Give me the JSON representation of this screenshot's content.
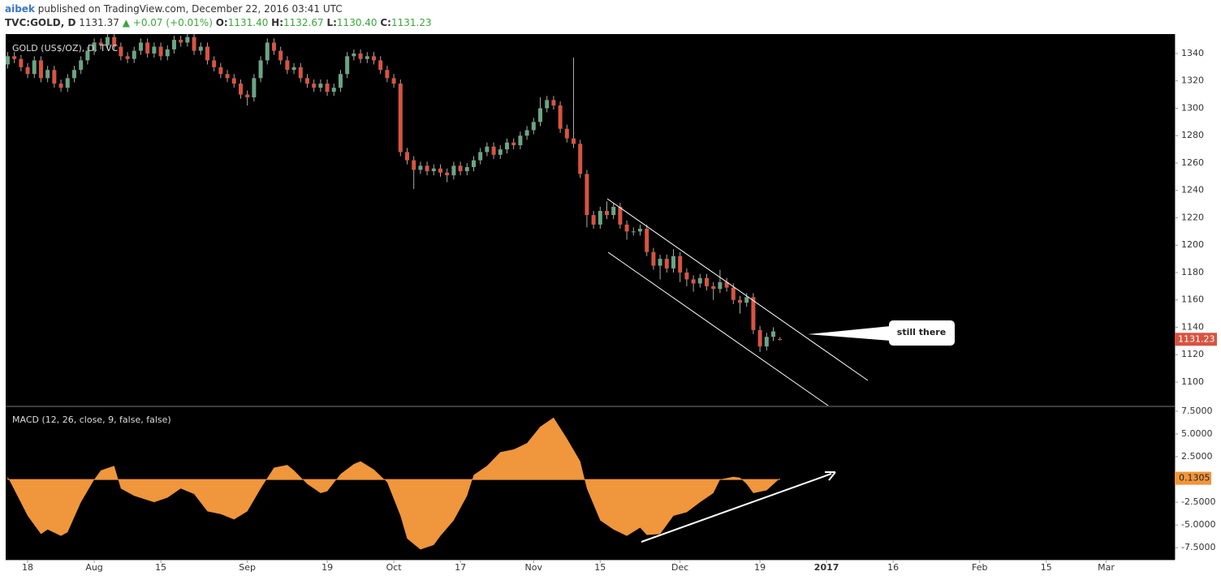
{
  "header": {
    "author": "aibek",
    "published": "published on TradingView.com, December 22, 2016 03:41 UTC",
    "symbol": "TVC:GOLD, D",
    "last": "1131.37",
    "change": "▲ +0.07 (+0.01%)",
    "ohlc": [
      {
        "label": "O:",
        "value": "1131.40"
      },
      {
        "label": "H:",
        "value": "1132.67"
      },
      {
        "label": "L:",
        "value": "1130.40"
      },
      {
        "label": "C:",
        "value": "1131.23"
      }
    ]
  },
  "annotations": [
    "still there"
  ],
  "chart_data": [
    {
      "type": "candlestick",
      "title": "GOLD (US$/OZ), D, TVC",
      "up_color": "#6ba583",
      "down_color": "#d75442",
      "x": [
        -3,
        -2,
        -1,
        0,
        1,
        2,
        3,
        4,
        5,
        6,
        7,
        8,
        9,
        10,
        11,
        12,
        13,
        14,
        15,
        16,
        17,
        18,
        19,
        20,
        21,
        22,
        23,
        24,
        25,
        26,
        27,
        28,
        29,
        30,
        31,
        32,
        33,
        34,
        35,
        36,
        37,
        38,
        39,
        40,
        41,
        42,
        43,
        44,
        45,
        46,
        47,
        48,
        49,
        50,
        51,
        52,
        53,
        54,
        55,
        56,
        57,
        58,
        59,
        60,
        61,
        62,
        63,
        64,
        65,
        66,
        67,
        68,
        69,
        70,
        71,
        72,
        73,
        74,
        75,
        76,
        77,
        78,
        79,
        80,
        81,
        82,
        83,
        84,
        85,
        86,
        87,
        88,
        89,
        90,
        91,
        92,
        93,
        94,
        95,
        96,
        97,
        98,
        99,
        100,
        101,
        102,
        103,
        104,
        105,
        106,
        107,
        108,
        109,
        110,
        111,
        112,
        113
      ],
      "open": [
        1332,
        1338,
        1336,
        1330,
        1325,
        1335,
        1322,
        1328,
        1318,
        1315,
        1322,
        1328,
        1335,
        1342,
        1348,
        1346,
        1352,
        1345,
        1338,
        1336,
        1342,
        1348,
        1340,
        1345,
        1338,
        1343,
        1350,
        1348,
        1352,
        1342,
        1345,
        1335,
        1330,
        1325,
        1322,
        1318,
        1310,
        1308,
        1322,
        1335,
        1348,
        1342,
        1335,
        1328,
        1330,
        1322,
        1318,
        1315,
        1318,
        1312,
        1315,
        1325,
        1338,
        1340,
        1336,
        1338,
        1335,
        1328,
        1322,
        1318,
        1268,
        1262,
        1255,
        1258,
        1254,
        1256,
        1253,
        1251,
        1258,
        1254,
        1257,
        1262,
        1268,
        1272,
        1266,
        1270,
        1275,
        1273,
        1280,
        1284,
        1290,
        1300,
        1306,
        1302,
        1285,
        1278,
        1274,
        1252,
        1222,
        1215,
        1225,
        1222,
        1228,
        1215,
        1210,
        1210,
        1212,
        1195,
        1185,
        1190,
        1183,
        1192,
        1180,
        1175,
        1172,
        1176,
        1170,
        1168,
        1173,
        1169,
        1160,
        1158,
        1162,
        1138,
        1126,
        1133,
        1131.4
      ],
      "high": [
        1341,
        1341,
        1339,
        1333,
        1338,
        1338,
        1331,
        1331,
        1321,
        1325,
        1331,
        1338,
        1345,
        1351,
        1351,
        1355,
        1355,
        1348,
        1341,
        1345,
        1351,
        1351,
        1348,
        1348,
        1346,
        1353,
        1353,
        1355,
        1355,
        1348,
        1348,
        1338,
        1333,
        1328,
        1325,
        1321,
        1313,
        1325,
        1338,
        1351,
        1351,
        1345,
        1338,
        1333,
        1333,
        1325,
        1321,
        1321,
        1321,
        1318,
        1328,
        1341,
        1343,
        1343,
        1341,
        1341,
        1338,
        1331,
        1325,
        1321,
        1271,
        1265,
        1261,
        1261,
        1259,
        1259,
        1256,
        1261,
        1261,
        1260,
        1265,
        1271,
        1275,
        1275,
        1273,
        1278,
        1278,
        1283,
        1287,
        1293,
        1308,
        1309,
        1309,
        1305,
        1288,
        1337,
        1277,
        1255,
        1225,
        1228,
        1232,
        1231,
        1231,
        1218,
        1213,
        1215,
        1215,
        1198,
        1193,
        1193,
        1197,
        1195,
        1183,
        1178,
        1179,
        1179,
        1173,
        1182,
        1176,
        1172,
        1163,
        1165,
        1165,
        1141,
        1136,
        1140,
        1132.67
      ],
      "low": [
        1329,
        1333,
        1327,
        1322,
        1322,
        1319,
        1319,
        1315,
        1312,
        1312,
        1319,
        1325,
        1332,
        1339,
        1343,
        1343,
        1342,
        1335,
        1333,
        1333,
        1339,
        1337,
        1337,
        1335,
        1335,
        1340,
        1345,
        1345,
        1339,
        1339,
        1332,
        1327,
        1322,
        1319,
        1315,
        1307,
        1302,
        1305,
        1319,
        1332,
        1339,
        1332,
        1325,
        1325,
        1319,
        1315,
        1312,
        1312,
        1309,
        1309,
        1312,
        1322,
        1335,
        1333,
        1333,
        1332,
        1325,
        1319,
        1315,
        1265,
        1259,
        1241,
        1252,
        1251,
        1251,
        1250,
        1246,
        1248,
        1251,
        1251,
        1254,
        1259,
        1265,
        1263,
        1263,
        1267,
        1270,
        1270,
        1277,
        1281,
        1287,
        1297,
        1299,
        1282,
        1275,
        1271,
        1249,
        1213,
        1212,
        1212,
        1219,
        1219,
        1212,
        1204,
        1207,
        1207,
        1192,
        1182,
        1175,
        1180,
        1180,
        1173,
        1170,
        1166,
        1169,
        1167,
        1160,
        1165,
        1166,
        1157,
        1150,
        1155,
        1135,
        1122,
        1123,
        1130,
        1130.4
      ],
      "close": [
        1338,
        1336,
        1330,
        1325,
        1335,
        1322,
        1328,
        1318,
        1315,
        1322,
        1328,
        1335,
        1342,
        1348,
        1346,
        1352,
        1345,
        1338,
        1336,
        1342,
        1348,
        1340,
        1345,
        1338,
        1343,
        1350,
        1348,
        1352,
        1342,
        1345,
        1335,
        1330,
        1325,
        1322,
        1318,
        1310,
        1308,
        1322,
        1335,
        1348,
        1342,
        1335,
        1328,
        1330,
        1322,
        1318,
        1315,
        1318,
        1312,
        1315,
        1325,
        1338,
        1340,
        1336,
        1338,
        1335,
        1328,
        1322,
        1318,
        1268,
        1262,
        1255,
        1258,
        1254,
        1256,
        1253,
        1251,
        1258,
        1254,
        1257,
        1262,
        1268,
        1272,
        1266,
        1270,
        1275,
        1273,
        1280,
        1284,
        1290,
        1300,
        1306,
        1302,
        1285,
        1278,
        1274,
        1252,
        1222,
        1215,
        1225,
        1222,
        1228,
        1215,
        1210,
        1210,
        1212,
        1195,
        1185,
        1190,
        1183,
        1192,
        1180,
        1175,
        1172,
        1176,
        1170,
        1168,
        1173,
        1169,
        1160,
        1158,
        1162,
        1138,
        1126,
        1133,
        1137,
        1131.23
      ],
      "xlim": [
        -3.3,
        172.3
      ],
      "ylim": [
        1082.8,
        1354.2
      ],
      "yticks": [
        1100,
        1120,
        1140,
        1160,
        1180,
        1200,
        1220,
        1240,
        1260,
        1280,
        1300,
        1320,
        1340
      ],
      "xticks": [
        {
          "value": 0,
          "label": "18"
        },
        {
          "value": 10,
          "label": "Aug"
        },
        {
          "value": 20,
          "label": "15"
        },
        {
          "value": 33,
          "label": "Sep"
        },
        {
          "value": 45,
          "label": "19"
        },
        {
          "value": 55,
          "label": "Oct"
        },
        {
          "value": 65,
          "label": "17"
        },
        {
          "value": 76,
          "label": "Nov"
        },
        {
          "value": 86,
          "label": "15"
        },
        {
          "value": 98,
          "label": "Dec"
        },
        {
          "value": 110,
          "label": "19"
        },
        {
          "value": 120,
          "label": "2017"
        },
        {
          "value": 130,
          "label": "16"
        },
        {
          "value": 143,
          "label": "Feb"
        },
        {
          "value": 153,
          "label": "15"
        },
        {
          "value": 162,
          "label": "Mar"
        }
      ],
      "grid": false
    },
    {
      "type": "area",
      "title": "MACD (12, 26, close, 9, false, false)",
      "color": "#f0963c",
      "x": [
        -3,
        0,
        2,
        3,
        5,
        6,
        8,
        10,
        11,
        13,
        14,
        16,
        19,
        21,
        23,
        25,
        27,
        29,
        31,
        33,
        35,
        37,
        39,
        40,
        42,
        44,
        45,
        47,
        49,
        50,
        52,
        54,
        56,
        57,
        59,
        61,
        62,
        64,
        66,
        67,
        69,
        71,
        73,
        75,
        77,
        79,
        81,
        83,
        84,
        86,
        88,
        90,
        92,
        93,
        95,
        96,
        97,
        99,
        101,
        103,
        104,
        106,
        107,
        108,
        109,
        111,
        113
      ],
      "values": [
        0.3,
        -4.0,
        -6.0,
        -5.5,
        -6.2,
        -5.8,
        -2.5,
        0,
        1.0,
        1.5,
        -1.0,
        -1.8,
        -2.5,
        -2.0,
        -1.0,
        -1.6,
        -3.5,
        -3.8,
        -4.4,
        -3.5,
        -1.0,
        1.3,
        1.6,
        1.0,
        -0.5,
        -1.5,
        -1.3,
        0.6,
        1.7,
        2.0,
        1.1,
        -0.3,
        -4.0,
        -6.5,
        -7.7,
        -7.2,
        -6.2,
        -4.5,
        -1.8,
        0.5,
        1.5,
        3.0,
        3.3,
        4.0,
        5.8,
        6.8,
        4.5,
        2.0,
        -1.0,
        -4.5,
        -5.5,
        -6.2,
        -5.3,
        -6.1,
        -6.0,
        -5.0,
        -4.0,
        -3.6,
        -2.5,
        -1.5,
        0,
        0.3,
        0.2,
        -0.5,
        -1.5,
        -1.2,
        0.1305
      ],
      "value_labels_last": "0.1305",
      "xlim": [
        -3.3,
        172.3
      ],
      "ylim": [
        -8.82,
        7.94
      ],
      "yticks": [
        {
          "value": 7.5,
          "label": "7.5000"
        },
        {
          "value": 5,
          "label": "5.0000"
        },
        {
          "value": 2.5,
          "label": "2.5000"
        },
        {
          "value": -2.5,
          "label": "-2.5000"
        },
        {
          "value": -5,
          "label": "-5.0000"
        },
        {
          "value": -7.5,
          "label": "-7.5000"
        }
      ],
      "grid": false
    }
  ]
}
